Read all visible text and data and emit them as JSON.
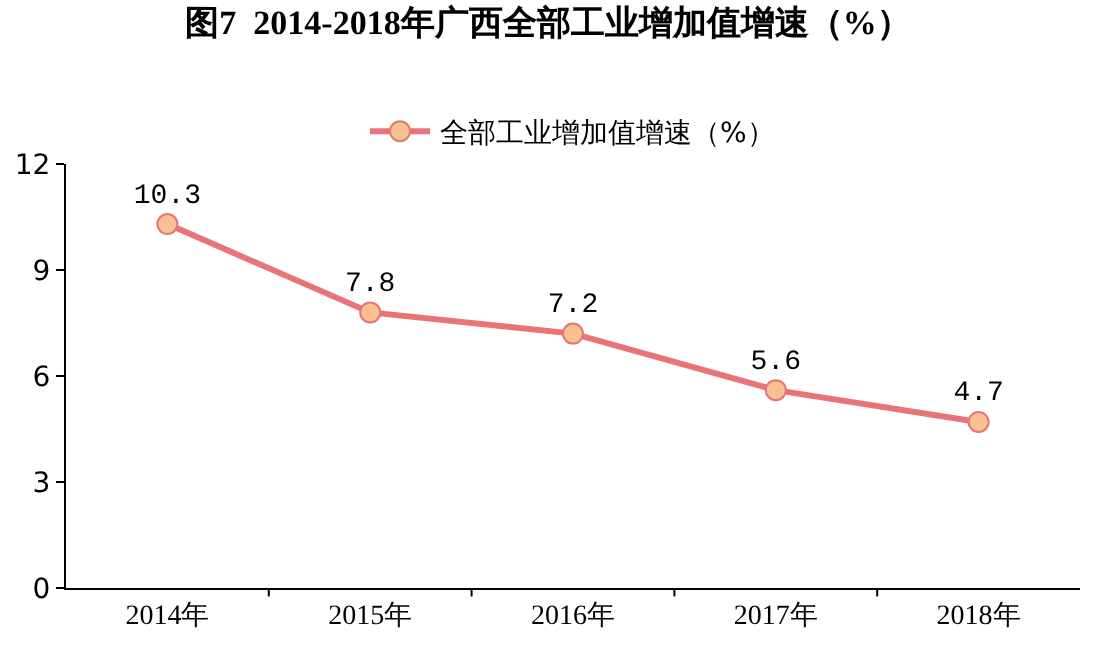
{
  "chart_data": {
    "type": "line",
    "title": "图7  2014-2018年广西全部工业增加值增速（%）",
    "categories": [
      "2014年",
      "2015年",
      "2016年",
      "2017年",
      "2018年"
    ],
    "series": [
      {
        "name": "全部工业增加值增速（%）",
        "color": "#e87478",
        "values": [
          10.3,
          7.8,
          7.2,
          5.6,
          4.7
        ]
      }
    ],
    "ylim": [
      0,
      12
    ],
    "yticks": [
      0,
      3,
      6,
      9,
      12
    ],
    "legend": "top",
    "marker": "circle",
    "line_style": "solid",
    "data_labels": true
  }
}
